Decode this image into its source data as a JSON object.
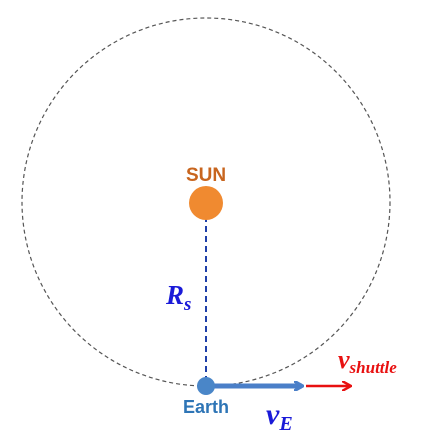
{
  "labels": {
    "sun": "SUN",
    "earth": "Earth",
    "radius_symbol": "R",
    "radius_subscript": "s",
    "earth_velocity_symbol": "v",
    "earth_velocity_subscript": "E",
    "shuttle_velocity_symbol": "v",
    "shuttle_velocity_subscript": "shuttle"
  },
  "colors": {
    "orbit": "#555555",
    "sun_fill": "#f08a30",
    "sun_text": "#c8651e",
    "earth_fill": "#4a86c8",
    "earth_text": "#2e75b6",
    "radius_line": "#1f3fa8",
    "radius_text": "#1a1ad8",
    "earth_velocity_arrow": "#4a7fc8",
    "earth_velocity_text": "#1a1ad8",
    "shuttle_velocity_arrow": "#e81010",
    "shuttle_velocity_text": "#e81010"
  }
}
